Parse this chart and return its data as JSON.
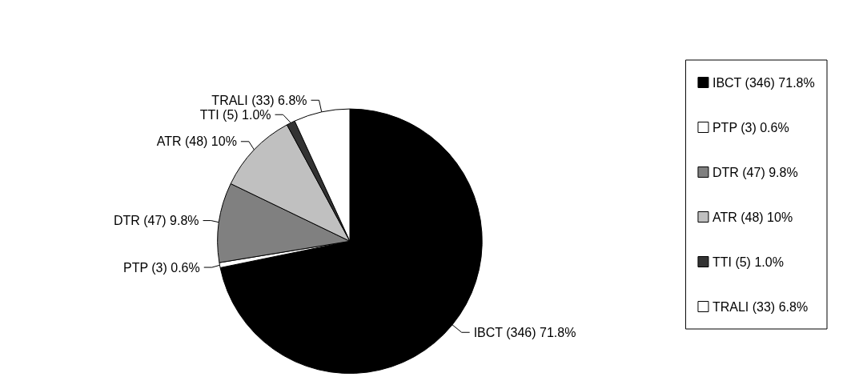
{
  "chart_data": {
    "type": "pie",
    "categories": [
      "IBCT (346) 71.8%",
      "PTP (3) 0.6%",
      "DTR (47) 9.8%",
      "ATR (48) 10%",
      "TTI (5) 1.0%",
      "TRALI (33) 6.8%"
    ],
    "values": [
      346,
      3,
      47,
      48,
      5,
      33
    ],
    "colors": [
      "#000000",
      "#ffffff",
      "#808080",
      "#c0c0c0",
      "#333333",
      "#ffffff"
    ],
    "legend": "right"
  }
}
